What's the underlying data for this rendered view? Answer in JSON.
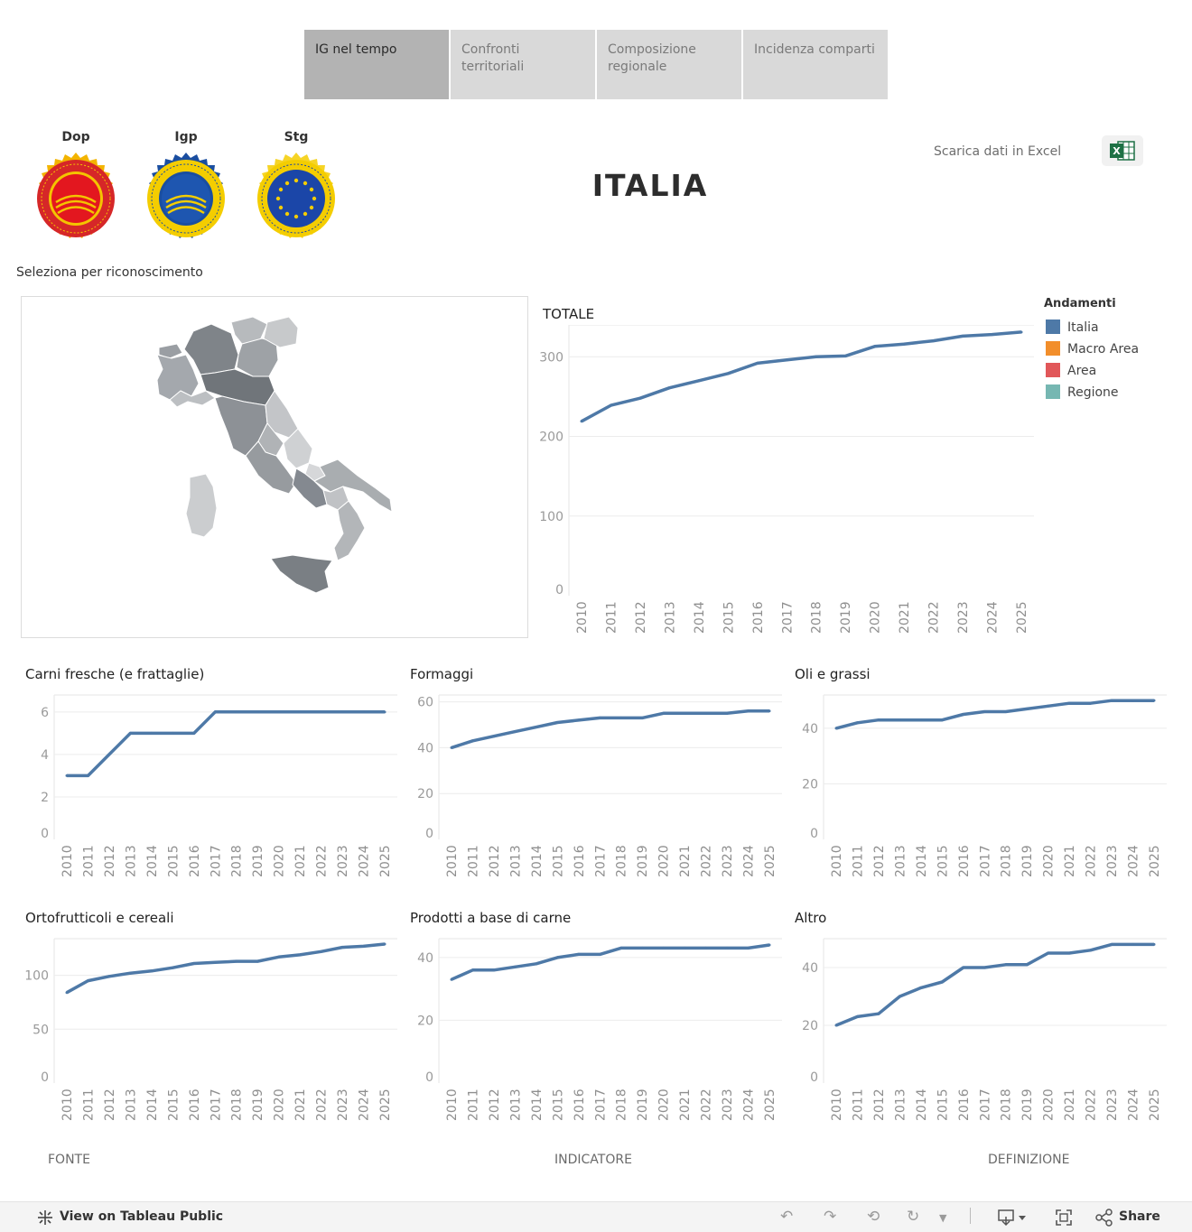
{
  "tabs": [
    {
      "label": "IG nel tempo"
    },
    {
      "label": "Confronti territoriali"
    },
    {
      "label": "Composizione regionale"
    },
    {
      "label": "Incidenza comparti"
    }
  ],
  "seals": [
    {
      "label": "Dop",
      "ring": "#d62728",
      "inner": "#e11d2a",
      "text_color": "#f3c400"
    },
    {
      "label": "Igp",
      "ring": "#f4cd00",
      "inner": "#1a4ea0",
      "text_color": "#f4cd00"
    },
    {
      "label": "Stg",
      "ring": "#f4cd00",
      "inner": "#1b46a8",
      "text_color": "#1b46a8"
    }
  ],
  "title": "ITALIA",
  "excel": {
    "label": "Scarica dati in Excel",
    "icon": "excel-icon",
    "icon_color": "#1e7145"
  },
  "select_label": "Seleziona per riconoscimento",
  "legend": {
    "title": "Andamenti",
    "items": [
      {
        "label": "Italia",
        "color": "#4e79a7"
      },
      {
        "label": "Macro Area",
        "color": "#f28e2b"
      },
      {
        "label": "Area",
        "color": "#e15759"
      },
      {
        "label": "Regione",
        "color": "#76b7b2"
      }
    ]
  },
  "chart_data": [
    {
      "type": "line",
      "title": "TOTALE",
      "x": [
        2010,
        2011,
        2012,
        2013,
        2014,
        2015,
        2016,
        2017,
        2018,
        2019,
        2020,
        2021,
        2022,
        2023,
        2024,
        2025
      ],
      "series": [
        {
          "name": "Italia",
          "values": [
            219,
            239,
            248,
            261,
            270,
            279,
            292,
            296,
            300,
            301,
            313,
            316,
            320,
            326,
            328,
            331
          ]
        }
      ],
      "yticks": [
        0,
        100,
        200,
        300
      ],
      "ylim": [
        0,
        340
      ],
      "color": "#4e79a7"
    },
    {
      "type": "line",
      "title": "Carni fresche (e frattaglie)",
      "x": [
        2010,
        2011,
        2012,
        2013,
        2014,
        2015,
        2016,
        2017,
        2018,
        2019,
        2020,
        2021,
        2022,
        2023,
        2024,
        2025
      ],
      "series": [
        {
          "name": "Italia",
          "values": [
            3,
            3,
            4,
            5,
            5,
            5,
            5,
            6,
            6,
            6,
            6,
            6,
            6,
            6,
            6,
            6
          ]
        }
      ],
      "yticks": [
        0,
        2,
        4,
        6
      ],
      "ylim": [
        0,
        6.8
      ],
      "color": "#4e79a7"
    },
    {
      "type": "line",
      "title": "Formaggi",
      "x": [
        2010,
        2011,
        2012,
        2013,
        2014,
        2015,
        2016,
        2017,
        2018,
        2019,
        2020,
        2021,
        2022,
        2023,
        2024,
        2025
      ],
      "series": [
        {
          "name": "Italia",
          "values": [
            40,
            43,
            45,
            47,
            49,
            51,
            52,
            53,
            53,
            53,
            55,
            55,
            55,
            55,
            56,
            56
          ]
        }
      ],
      "yticks": [
        0,
        20,
        40,
        60
      ],
      "ylim": [
        0,
        63
      ],
      "color": "#4e79a7"
    },
    {
      "type": "line",
      "title": "Oli e grassi",
      "x": [
        2010,
        2011,
        2012,
        2013,
        2014,
        2015,
        2016,
        2017,
        2018,
        2019,
        2020,
        2021,
        2022,
        2023,
        2024,
        2025
      ],
      "series": [
        {
          "name": "Italia",
          "values": [
            40,
            42,
            43,
            43,
            43,
            43,
            45,
            46,
            46,
            47,
            48,
            49,
            49,
            50,
            50,
            50
          ]
        }
      ],
      "yticks": [
        0,
        20,
        40
      ],
      "ylim": [
        0,
        52
      ],
      "color": "#4e79a7"
    },
    {
      "type": "line",
      "title": "Ortofrutticoli e cereali",
      "x": [
        2010,
        2011,
        2012,
        2013,
        2014,
        2015,
        2016,
        2017,
        2018,
        2019,
        2020,
        2021,
        2022,
        2023,
        2024,
        2025
      ],
      "series": [
        {
          "name": "Italia",
          "values": [
            84,
            95,
            99,
            102,
            104,
            107,
            111,
            112,
            113,
            113,
            117,
            119,
            122,
            126,
            127,
            129
          ]
        }
      ],
      "yticks": [
        0,
        50,
        100
      ],
      "ylim": [
        0,
        134
      ],
      "color": "#4e79a7"
    },
    {
      "type": "line",
      "title": "Prodotti a base di carne",
      "x": [
        2010,
        2011,
        2012,
        2013,
        2014,
        2015,
        2016,
        2017,
        2018,
        2019,
        2020,
        2021,
        2022,
        2023,
        2024,
        2025
      ],
      "series": [
        {
          "name": "Italia",
          "values": [
            33,
            36,
            36,
            37,
            38,
            40,
            41,
            41,
            43,
            43,
            43,
            43,
            43,
            43,
            43,
            44
          ]
        }
      ],
      "yticks": [
        0,
        20,
        40
      ],
      "ylim": [
        0,
        46
      ],
      "color": "#4e79a7"
    },
    {
      "type": "line",
      "title": "Altro",
      "x": [
        2010,
        2011,
        2012,
        2013,
        2014,
        2015,
        2016,
        2017,
        2018,
        2019,
        2020,
        2021,
        2022,
        2023,
        2024,
        2025
      ],
      "series": [
        {
          "name": "Italia",
          "values": [
            20,
            23,
            24,
            30,
            33,
            35,
            40,
            40,
            41,
            41,
            45,
            45,
            46,
            48,
            48,
            48
          ]
        }
      ],
      "yticks": [
        0,
        20,
        40
      ],
      "ylim": [
        0,
        50
      ],
      "color": "#4e79a7"
    }
  ],
  "footer": {
    "fonte": "FONTE",
    "indicatore": "INDICATORE",
    "definizione": "DEFINIZIONE"
  },
  "toolbar": {
    "tableau_label": "View on Tableau Public",
    "share_label": "Share",
    "icons": [
      "undo-icon",
      "redo-icon",
      "revert-icon",
      "refresh-icon",
      "download-icon",
      "fullscreen-icon",
      "share-icon"
    ]
  }
}
